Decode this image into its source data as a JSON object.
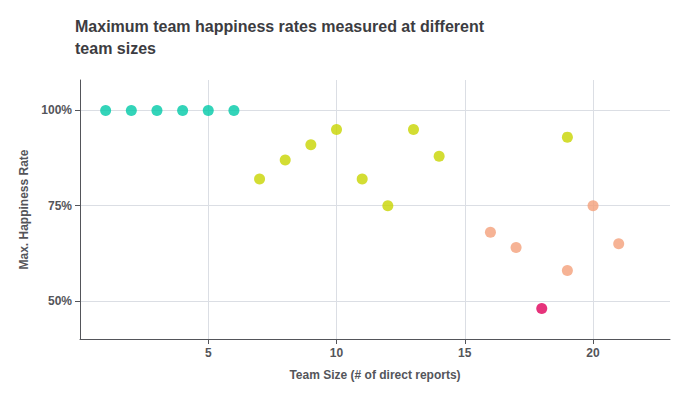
{
  "chart_data": {
    "type": "scatter",
    "title": "Maximum team happiness rates measured at different\nteam sizes",
    "xlabel": "Team Size (# of direct reports)",
    "ylabel": "Max. Happiness Rate",
    "x": [
      1,
      2,
      3,
      4,
      5,
      6,
      7,
      8,
      9,
      10,
      11,
      12,
      13,
      14,
      19,
      16,
      17,
      20,
      21,
      19,
      18
    ],
    "values": [
      100,
      100,
      100,
      100,
      100,
      100,
      82,
      87,
      91,
      95,
      82,
      75,
      95,
      88,
      93,
      68,
      64,
      75,
      65,
      58,
      48
    ],
    "colors": [
      "#00C9A7",
      "#00C9A7",
      "#00C9A7",
      "#00C9A7",
      "#00C9A7",
      "#00C9A7",
      "#C8D400",
      "#C8D400",
      "#C8D400",
      "#C8D400",
      "#C8D400",
      "#C8D400",
      "#C8D400",
      "#C8D400",
      "#C8D400",
      "#F4A07A",
      "#F4A07A",
      "#F4A07A",
      "#F4A07A",
      "#F4A07A",
      "#E0005A"
    ],
    "xlim": [
      0.0,
      23
    ],
    "ylim": [
      40,
      108
    ],
    "xticks": [
      5,
      10,
      15,
      20
    ],
    "yticks": [
      {
        "value": 50,
        "label": "50%"
      },
      {
        "value": 75,
        "label": "75%"
      },
      {
        "value": 100,
        "label": "100%"
      }
    ],
    "grid": true
  }
}
